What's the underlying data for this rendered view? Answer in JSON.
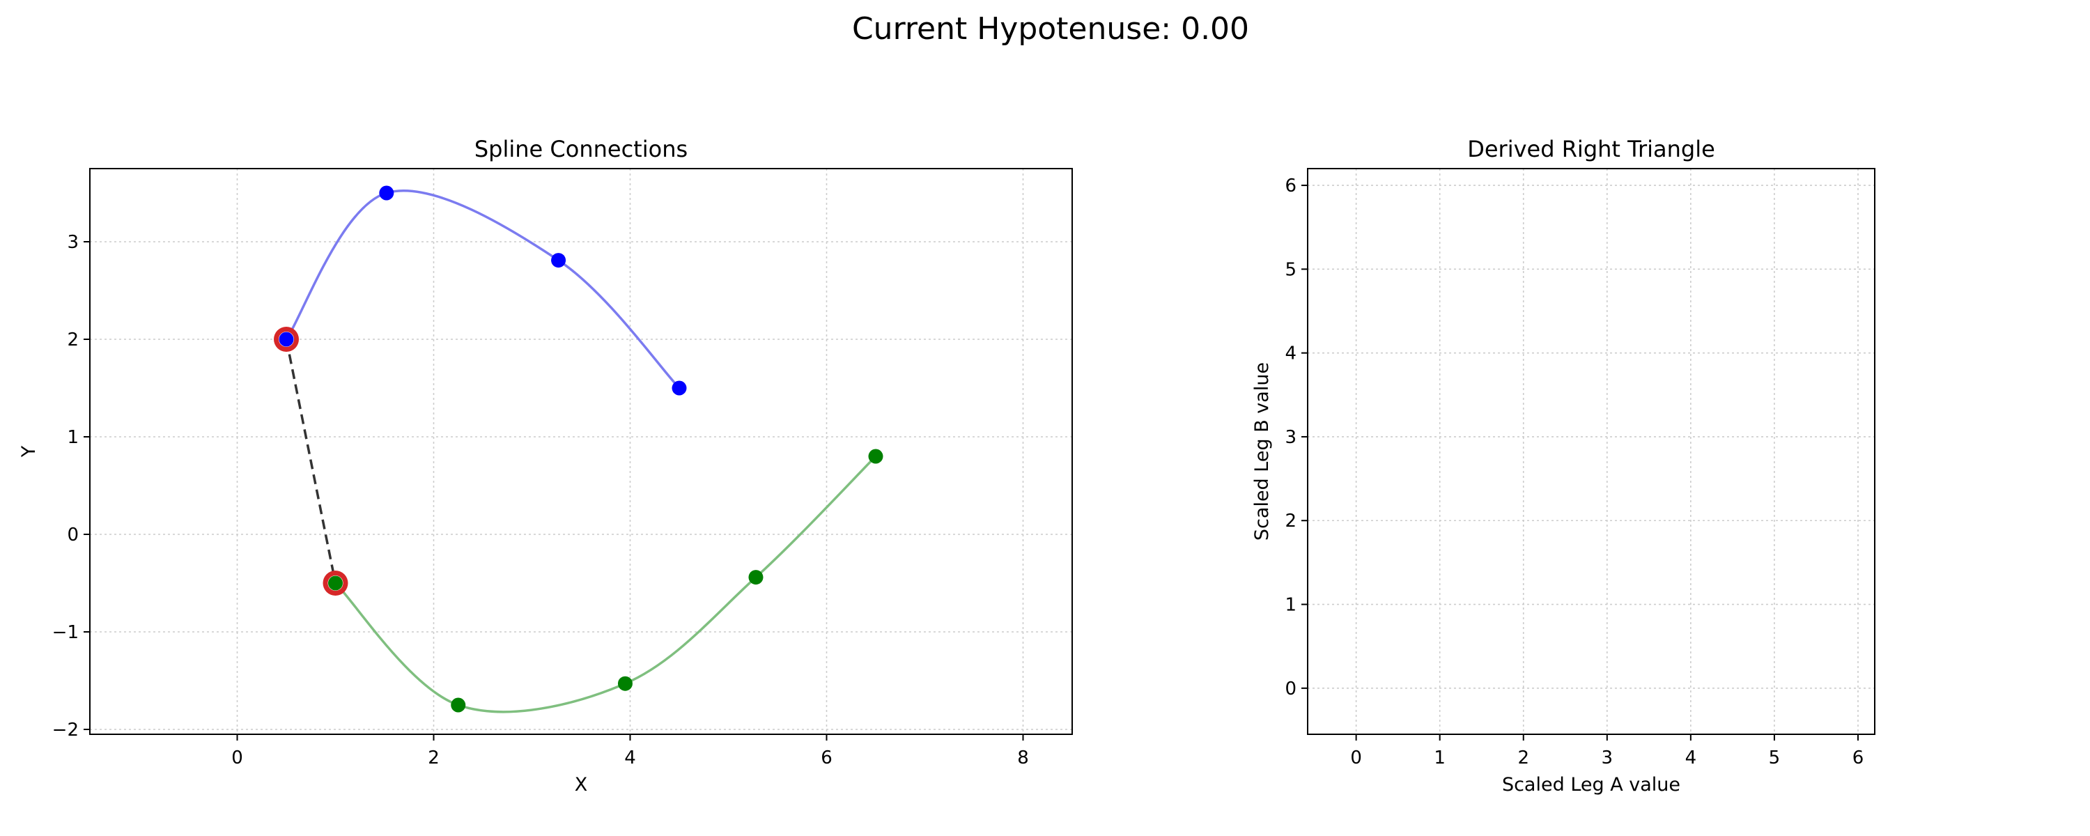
{
  "figure": {
    "suptitle": "Current Hypotenuse: 0.00"
  },
  "chart_data": [
    {
      "type": "line",
      "title": "Spline Connections",
      "xlabel": "X",
      "ylabel": "Y",
      "xlim": [
        -1.5,
        8.5
      ],
      "ylim": [
        -2.05,
        3.75
      ],
      "xticks": [
        0,
        2,
        4,
        6,
        8
      ],
      "yticks": [
        -2,
        -1,
        0,
        1,
        2,
        3
      ],
      "grid": true,
      "series": [
        {
          "color": "#0000ff",
          "curve_color": "#7b7bf0",
          "points": [
            [
              0.5,
              2.0
            ],
            [
              1.52,
              3.5
            ],
            [
              3.27,
              2.81
            ],
            [
              4.5,
              1.5
            ]
          ]
        },
        {
          "color": "#008000",
          "curve_color": "#7fbf7f",
          "points": [
            [
              1.0,
              -0.5
            ],
            [
              2.25,
              -1.75
            ],
            [
              3.95,
              -1.53
            ],
            [
              5.28,
              -0.44
            ],
            [
              6.5,
              0.8
            ]
          ]
        }
      ],
      "highlighted_points": [
        [
          0.5,
          2.0
        ],
        [
          1.0,
          -0.5
        ]
      ],
      "highlight_color": "#d62728",
      "connector": {
        "from": [
          0.5,
          2.0
        ],
        "to": [
          1.0,
          -0.5
        ],
        "style": "dashed",
        "color": "#333333"
      }
    },
    {
      "type": "line",
      "title": "Derived Right Triangle",
      "xlabel": "Scaled Leg A value",
      "ylabel": "Scaled Leg B value",
      "xlim": [
        -0.58,
        6.2
      ],
      "ylim": [
        -0.55,
        6.2
      ],
      "xticks": [
        0,
        1,
        2,
        3,
        4,
        5,
        6
      ],
      "yticks": [
        0,
        1,
        2,
        3,
        4,
        5,
        6
      ],
      "grid": true,
      "series": []
    }
  ]
}
